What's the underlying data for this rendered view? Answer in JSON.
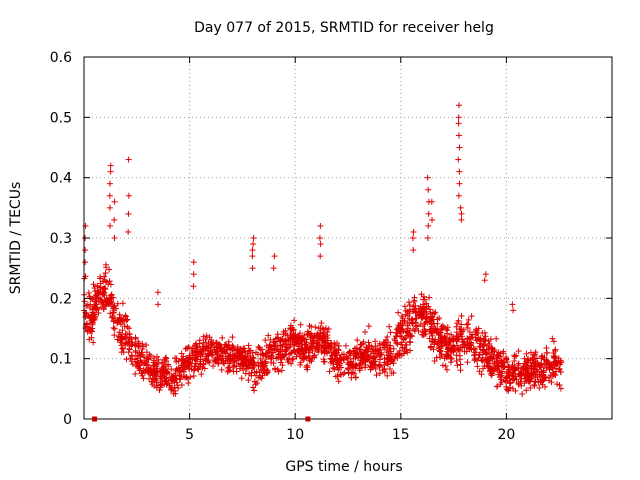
{
  "chart_data": {
    "type": "scatter",
    "title": "Day 077 of 2015, SRMTID for receiver helg",
    "xlabel": "GPS time / hours",
    "ylabel": "SRMTID / TECUs",
    "xlim": [
      0,
      25
    ],
    "ylim": [
      0,
      0.6
    ],
    "x_ticks": [
      "0",
      "5",
      "10",
      "15",
      "20"
    ],
    "y_ticks": [
      "0",
      "0.1",
      "0.2",
      "0.3",
      "0.4",
      "0.5",
      "0.6"
    ],
    "grid": true,
    "marker": "+",
    "color": "#e00000",
    "data_gap_markers_x": [
      0.5,
      10.6
    ],
    "envelope": {
      "x": [
        0.0,
        0.3,
        0.6,
        1.0,
        1.3,
        1.6,
        2.0,
        2.3,
        2.6,
        3.0,
        3.4,
        3.8,
        4.2,
        4.6,
        5.0,
        5.4,
        5.8,
        6.2,
        6.6,
        7.0,
        7.4,
        7.8,
        8.2,
        8.6,
        9.0,
        9.4,
        9.8,
        10.2,
        10.6,
        11.0,
        11.4,
        11.8,
        12.2,
        12.6,
        13.0,
        13.4,
        13.8,
        14.2,
        14.6,
        15.0,
        15.4,
        15.8,
        16.2,
        16.6,
        17.0,
        17.4,
        17.8,
        18.2,
        18.6,
        19.0,
        19.4,
        19.8,
        20.2,
        20.6,
        21.0,
        21.4,
        21.8,
        22.2,
        22.6
      ],
      "low": [
        0.12,
        0.1,
        0.14,
        0.15,
        0.13,
        0.1,
        0.08,
        0.07,
        0.06,
        0.04,
        0.04,
        0.04,
        0.03,
        0.04,
        0.05,
        0.06,
        0.07,
        0.08,
        0.07,
        0.06,
        0.07,
        0.05,
        0.04,
        0.05,
        0.06,
        0.07,
        0.08,
        0.08,
        0.07,
        0.08,
        0.08,
        0.06,
        0.05,
        0.06,
        0.06,
        0.07,
        0.05,
        0.05,
        0.06,
        0.08,
        0.1,
        0.12,
        0.11,
        0.08,
        0.07,
        0.06,
        0.07,
        0.07,
        0.07,
        0.06,
        0.05,
        0.04,
        0.03,
        0.03,
        0.04,
        0.04,
        0.04,
        0.05,
        0.04
      ],
      "high": [
        0.26,
        0.23,
        0.25,
        0.27,
        0.25,
        0.22,
        0.2,
        0.17,
        0.14,
        0.13,
        0.11,
        0.11,
        0.1,
        0.12,
        0.14,
        0.15,
        0.15,
        0.15,
        0.14,
        0.14,
        0.14,
        0.13,
        0.13,
        0.15,
        0.16,
        0.16,
        0.18,
        0.17,
        0.16,
        0.17,
        0.17,
        0.15,
        0.13,
        0.13,
        0.14,
        0.16,
        0.15,
        0.15,
        0.17,
        0.2,
        0.22,
        0.24,
        0.23,
        0.2,
        0.18,
        0.17,
        0.19,
        0.19,
        0.18,
        0.16,
        0.14,
        0.13,
        0.12,
        0.12,
        0.12,
        0.12,
        0.13,
        0.14,
        0.12
      ]
    },
    "spikes": [
      {
        "x": 0.05,
        "values": [
          0.32,
          0.3,
          0.28,
          0.26
        ]
      },
      {
        "x": 1.25,
        "values": [
          0.42,
          0.41,
          0.39,
          0.37,
          0.35,
          0.32
        ]
      },
      {
        "x": 1.45,
        "values": [
          0.36,
          0.33,
          0.3
        ]
      },
      {
        "x": 2.1,
        "values": [
          0.43,
          0.37,
          0.34,
          0.31
        ]
      },
      {
        "x": 3.5,
        "values": [
          0.21,
          0.19
        ]
      },
      {
        "x": 5.2,
        "values": [
          0.26,
          0.24,
          0.22
        ]
      },
      {
        "x": 8.0,
        "values": [
          0.3,
          0.29,
          0.28,
          0.27,
          0.25
        ]
      },
      {
        "x": 9.0,
        "values": [
          0.27,
          0.25
        ]
      },
      {
        "x": 11.2,
        "values": [
          0.32,
          0.3,
          0.29,
          0.27
        ]
      },
      {
        "x": 15.6,
        "values": [
          0.31,
          0.3,
          0.28
        ]
      },
      {
        "x": 16.3,
        "values": [
          0.4,
          0.38,
          0.36,
          0.34,
          0.32,
          0.3
        ]
      },
      {
        "x": 16.45,
        "values": [
          0.36,
          0.33
        ]
      },
      {
        "x": 17.75,
        "values": [
          0.52,
          0.5,
          0.49,
          0.47,
          0.45,
          0.43,
          0.41,
          0.39,
          0.37
        ]
      },
      {
        "x": 17.85,
        "values": [
          0.35,
          0.34,
          0.33
        ]
      },
      {
        "x": 19.0,
        "values": [
          0.24,
          0.23
        ]
      },
      {
        "x": 20.3,
        "values": [
          0.19,
          0.18
        ]
      }
    ],
    "n_points": 2200
  }
}
